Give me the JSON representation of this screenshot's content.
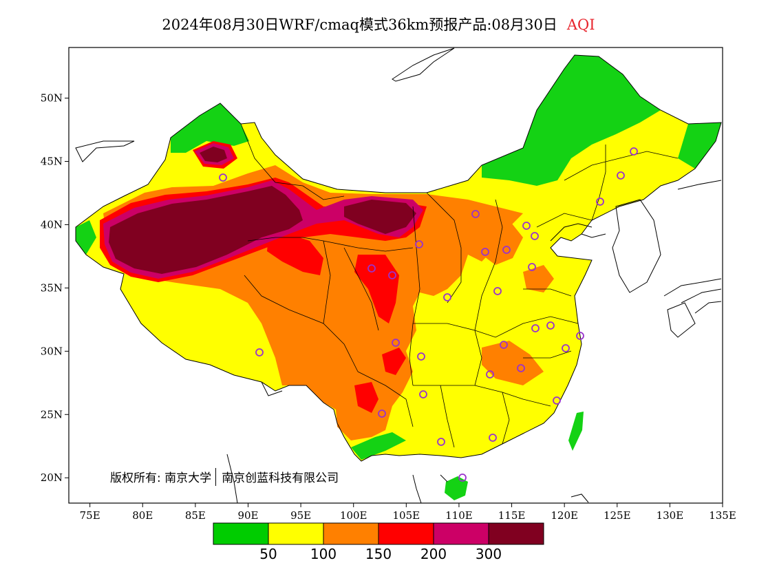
{
  "title": {
    "main": "2024年08月30日WRF/cmaq模式36km预报产品:08月30日",
    "variable": "AQI"
  },
  "copyright": {
    "prefix": "版权所有: 南京大学",
    "company": "南京创蓝科技有限公司"
  },
  "axes": {
    "lon_ticks": [
      "75E",
      "80E",
      "85E",
      "90E",
      "95E",
      "100E",
      "105E",
      "110E",
      "115E",
      "120E",
      "125E",
      "130E",
      "135E"
    ],
    "lat_ticks": [
      "50N",
      "45N",
      "40N",
      "35N",
      "30N",
      "25N",
      "20N"
    ],
    "lon_range": [
      73,
      135
    ],
    "lat_range": [
      18,
      54
    ]
  },
  "legend": {
    "colors": [
      "#00cc00",
      "#ffff00",
      "#ff8000",
      "#ff0000",
      "#cc0066",
      "#800020"
    ],
    "labels": [
      "50",
      "100",
      "150",
      "200",
      "300"
    ]
  },
  "colors": {
    "green": "#14d214",
    "yellow": "#ffff00",
    "orange": "#ff8000",
    "red": "#ff0000",
    "magenta": "#cc0066",
    "maroon": "#800020",
    "station_ring": "#9932cc"
  }
}
